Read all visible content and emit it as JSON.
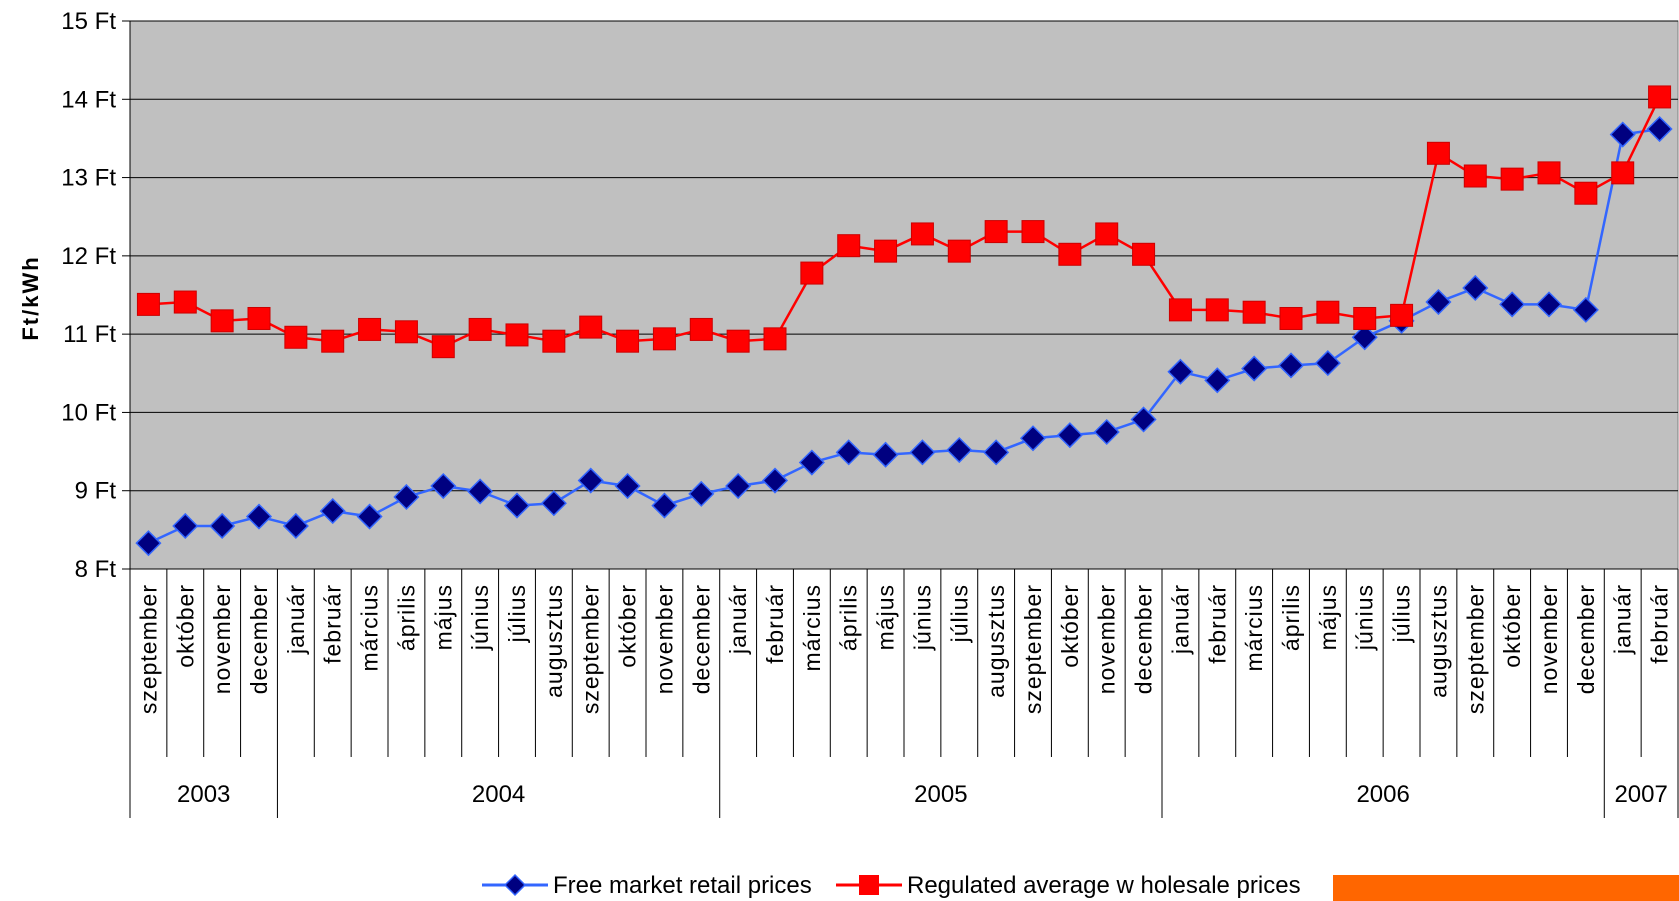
{
  "chart_data": {
    "type": "line",
    "ylabel": "Ft/kWh",
    "ylim": [
      8,
      15
    ],
    "y_ticks": [
      "8 Ft",
      "9 Ft",
      "10 Ft",
      "11 Ft",
      "12 Ft",
      "13 Ft",
      "14 Ft",
      "15 Ft"
    ],
    "grid": true,
    "legend_position": "bottom",
    "plot_background": "#c0c0c0",
    "categories": [
      "szeptember",
      "október",
      "november",
      "december",
      "január",
      "február",
      "március",
      "április",
      "május",
      "június",
      "július",
      "augusztus",
      "szeptember",
      "október",
      "november",
      "december",
      "január",
      "február",
      "március",
      "április",
      "május",
      "június",
      "július",
      "augusztus",
      "szeptember",
      "október",
      "november",
      "december",
      "január",
      "február",
      "március",
      "április",
      "május",
      "június",
      "július",
      "augusztus",
      "szeptember",
      "október",
      "november",
      "december",
      "január",
      "február"
    ],
    "year_groups": [
      {
        "label": "2003",
        "start": 0,
        "count": 4
      },
      {
        "label": "2004",
        "start": 4,
        "count": 12
      },
      {
        "label": "2005",
        "start": 16,
        "count": 12
      },
      {
        "label": "2006",
        "start": 28,
        "count": 12
      },
      {
        "label": "2007",
        "start": 40,
        "count": 2
      }
    ],
    "series": [
      {
        "name": "Free market retail prices",
        "color": "#3366ff",
        "marker": "diamond",
        "marker_color": "#000080",
        "values": [
          8.33,
          8.55,
          8.55,
          8.67,
          8.55,
          8.74,
          8.67,
          8.92,
          9.06,
          8.99,
          8.81,
          8.84,
          9.13,
          9.06,
          8.81,
          8.96,
          9.06,
          9.13,
          9.36,
          9.49,
          9.46,
          9.49,
          9.52,
          9.49,
          9.67,
          9.71,
          9.75,
          9.91,
          10.52,
          10.41,
          10.56,
          10.6,
          10.63,
          10.96,
          11.17,
          11.41,
          11.59,
          11.38,
          11.38,
          11.31,
          13.55,
          13.62
        ]
      },
      {
        "name": "Regulated average w holesale prices",
        "color": "#ff0000",
        "marker": "square",
        "marker_color": "#ff0000",
        "values": [
          11.38,
          11.41,
          11.17,
          11.2,
          10.96,
          10.91,
          11.06,
          11.03,
          10.84,
          11.06,
          10.99,
          10.91,
          11.09,
          10.91,
          10.94,
          11.06,
          10.91,
          10.94,
          11.78,
          12.13,
          12.06,
          12.28,
          12.06,
          12.31,
          12.31,
          12.02,
          12.28,
          12.02,
          11.31,
          11.31,
          11.28,
          11.2,
          11.28,
          11.2,
          11.24,
          13.31,
          13.02,
          12.98,
          13.06,
          12.8,
          13.06,
          14.03
        ]
      }
    ]
  },
  "legend": {
    "extra_swatch_color": "#ff6600"
  }
}
